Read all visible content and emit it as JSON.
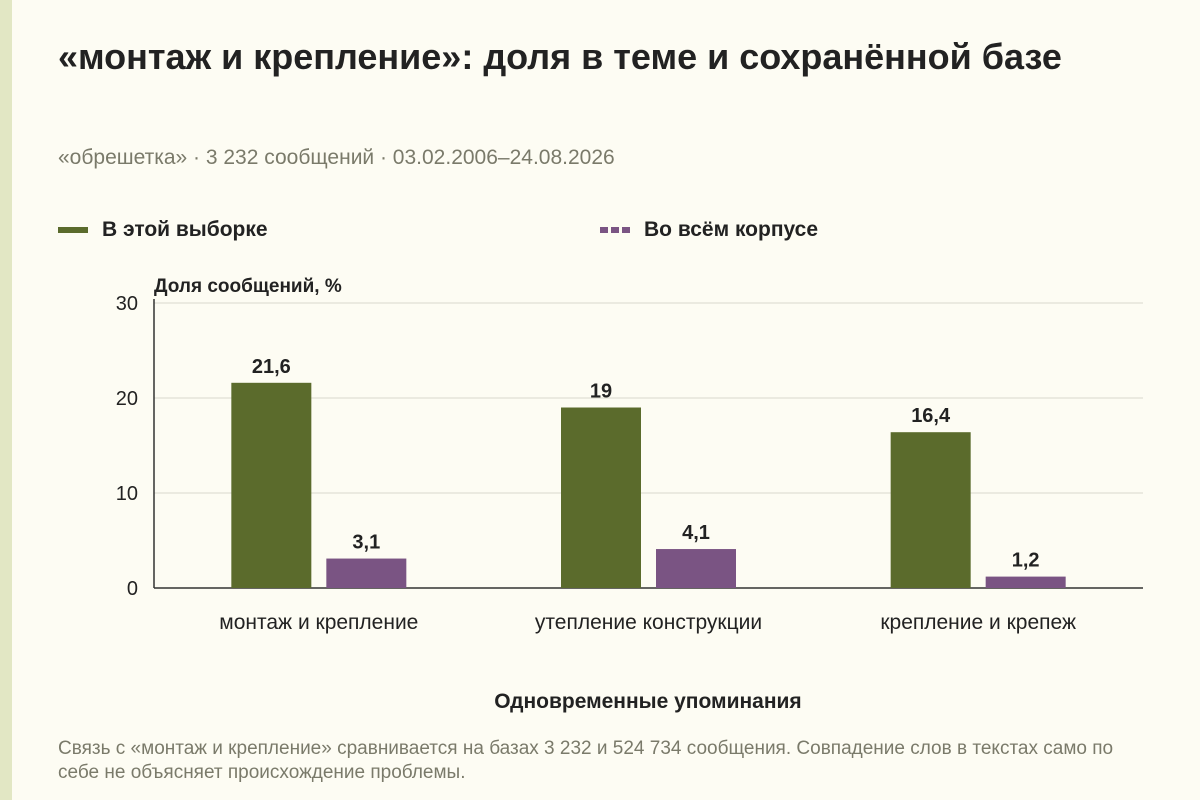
{
  "title": "«монтаж и крепление»: доля в теме и сохранённой базе",
  "subtitle": "«обрешетка» · 3 232 сообщений · 03.02.2006–24.08.2026",
  "footnote": "Связь с «монтаж и крепление» сравнивается на базах 3 232 и 524 734 сообщения. Совпадение слов в текстах само по себе не объясняет происхождение проблемы.",
  "colors": {
    "sample": "#5b6b2c",
    "corpus": "#7a5483",
    "grid": "#d9d9cc",
    "axis": "#333333"
  },
  "chart_data": {
    "type": "bar",
    "ylabel": "Доля сообщений, %",
    "xlabel": "Одновременные упоминания",
    "ylim": [
      0,
      30
    ],
    "yticks": [
      0,
      10,
      20,
      30
    ],
    "grid": true,
    "legend_position": "top",
    "categories": [
      "монтаж и крепление",
      "утепление конструкции",
      "крепление и крепеж"
    ],
    "series": [
      {
        "name": "В этой выборке",
        "values": [
          21.6,
          19,
          16.4
        ],
        "labels": [
          "21,6",
          "19",
          "16,4"
        ]
      },
      {
        "name": "Во всём корпусе",
        "values": [
          3.1,
          4.1,
          1.2
        ],
        "labels": [
          "3,1",
          "4,1",
          "1,2"
        ]
      }
    ]
  }
}
